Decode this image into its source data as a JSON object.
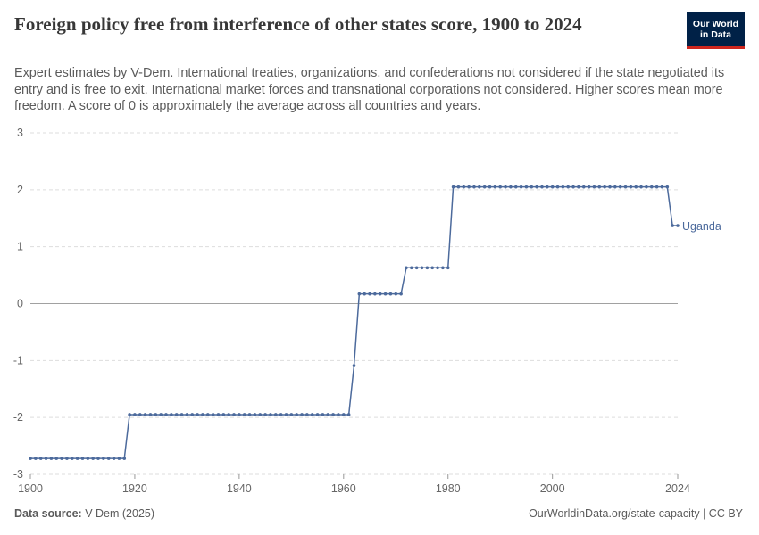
{
  "header": {
    "title": "Foreign policy free from interference of other states score, 1900 to 2024",
    "subtitle": "Expert estimates by V-Dem. International treaties, organizations, and confederations not considered if the state negotiated its entry and is free to exit. International market forces and transnational corporations not considered. Higher scores mean more freedom. A score of 0 is approximately the average across all countries and years.",
    "logo_line1": "Our World",
    "logo_line2": "in Data"
  },
  "footer": {
    "source_label": "Data source:",
    "source_value": "V-Dem (2025)",
    "url": "OurWorldinData.org/state-capacity | CC BY"
  },
  "colors": {
    "series": "#4c6a9c",
    "grid": "#dddddd",
    "zero": "#a1a1a1"
  },
  "chart_data": {
    "type": "line",
    "title": "Foreign policy free from interference of other states score, 1900 to 2024",
    "xlabel": "",
    "ylabel": "",
    "xlim": [
      1900,
      2024
    ],
    "ylim": [
      -3,
      3
    ],
    "xticks": [
      1900,
      1920,
      1940,
      1960,
      1980,
      2000,
      2024
    ],
    "yticks": [
      3,
      2,
      1,
      0,
      -1,
      -2,
      -3
    ],
    "grid": true,
    "series": [
      {
        "name": "Uganda",
        "segments": [
          {
            "from": 1900,
            "to": 1918,
            "value": -2.72
          },
          {
            "from": 1919,
            "to": 1961,
            "value": -1.95
          },
          {
            "from": 1962,
            "to": 1962,
            "value": -1.09
          },
          {
            "from": 1963,
            "to": 1971,
            "value": 0.17
          },
          {
            "from": 1972,
            "to": 1980,
            "value": 0.63
          },
          {
            "from": 1981,
            "to": 2022,
            "value": 2.05
          },
          {
            "from": 2023,
            "to": 2024,
            "value": 1.37
          }
        ]
      }
    ]
  }
}
